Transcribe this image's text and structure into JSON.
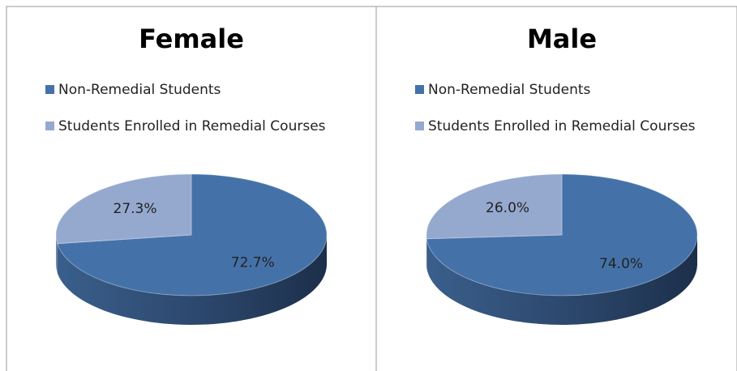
{
  "chart_data": [
    {
      "type": "pie",
      "title": "Female",
      "categories": [
        "Non-Remedial Students",
        "Students Enrolled in Remedial Courses"
      ],
      "values": [
        72.7,
        27.3
      ],
      "value_labels": [
        "72.7%",
        "27.3%"
      ],
      "colors": [
        "#4472a8",
        "#95a9cf"
      ]
    },
    {
      "type": "pie",
      "title": "Male",
      "categories": [
        "Non-Remedial Students",
        "Students Enrolled in Remedial Courses"
      ],
      "values": [
        74.0,
        26.0
      ],
      "value_labels": [
        "74.0%",
        "26.0%"
      ],
      "colors": [
        "#4472a8",
        "#95a9cf"
      ]
    }
  ]
}
